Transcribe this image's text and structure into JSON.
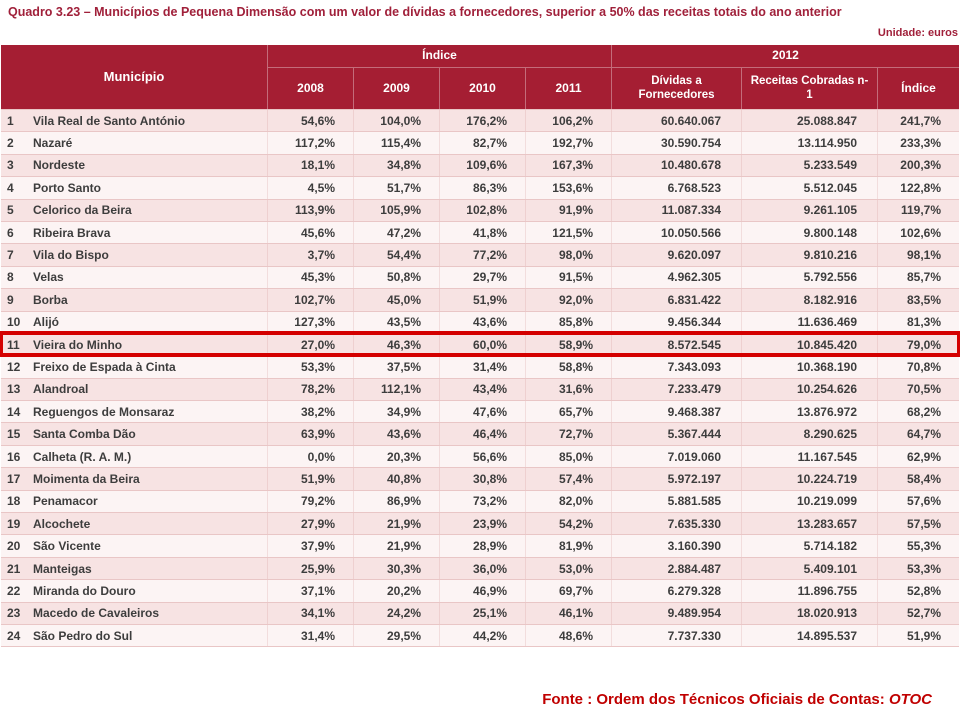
{
  "title": "Quadro 3.23 – Municípios de Pequena Dimensão com um valor de dívidas a fornecedores, superior a 50% das receitas totais do ano anterior",
  "unit_label": "Unidade: euros",
  "table": {
    "header": {
      "municipio": "Município",
      "indice_group": "Índice",
      "group_2012": "2012",
      "years": [
        "2008",
        "2009",
        "2010",
        "2011"
      ],
      "dividas": "Dívidas a Fornecedores",
      "receitas": "Receitas Cobradas n-1",
      "indice": "Índice"
    },
    "highlighted_row": 11,
    "rows": [
      [
        "1",
        "Vila Real de Santo António",
        "54,6%",
        "104,0%",
        "176,2%",
        "106,2%",
        "60.640.067",
        "25.088.847",
        "241,7%"
      ],
      [
        "2",
        "Nazaré",
        "117,2%",
        "115,4%",
        "82,7%",
        "192,7%",
        "30.590.754",
        "13.114.950",
        "233,3%"
      ],
      [
        "3",
        "Nordeste",
        "18,1%",
        "34,8%",
        "109,6%",
        "167,3%",
        "10.480.678",
        "5.233.549",
        "200,3%"
      ],
      [
        "4",
        "Porto Santo",
        "4,5%",
        "51,7%",
        "86,3%",
        "153,6%",
        "6.768.523",
        "5.512.045",
        "122,8%"
      ],
      [
        "5",
        "Celorico da Beira",
        "113,9%",
        "105,9%",
        "102,8%",
        "91,9%",
        "11.087.334",
        "9.261.105",
        "119,7%"
      ],
      [
        "6",
        "Ribeira Brava",
        "45,6%",
        "47,2%",
        "41,8%",
        "121,5%",
        "10.050.566",
        "9.800.148",
        "102,6%"
      ],
      [
        "7",
        "Vila do Bispo",
        "3,7%",
        "54,4%",
        "77,2%",
        "98,0%",
        "9.620.097",
        "9.810.216",
        "98,1%"
      ],
      [
        "8",
        "Velas",
        "45,3%",
        "50,8%",
        "29,7%",
        "91,5%",
        "4.962.305",
        "5.792.556",
        "85,7%"
      ],
      [
        "9",
        "Borba",
        "102,7%",
        "45,0%",
        "51,9%",
        "92,0%",
        "6.831.422",
        "8.182.916",
        "83,5%"
      ],
      [
        "10",
        "Alijó",
        "127,3%",
        "43,5%",
        "43,6%",
        "85,8%",
        "9.456.344",
        "11.636.469",
        "81,3%"
      ],
      [
        "11",
        "Vieira do Minho",
        "27,0%",
        "46,3%",
        "60,0%",
        "58,9%",
        "8.572.545",
        "10.845.420",
        "79,0%"
      ],
      [
        "12",
        "Freixo de Espada à Cinta",
        "53,3%",
        "37,5%",
        "31,4%",
        "58,8%",
        "7.343.093",
        "10.368.190",
        "70,8%"
      ],
      [
        "13",
        "Alandroal",
        "78,2%",
        "112,1%",
        "43,4%",
        "31,6%",
        "7.233.479",
        "10.254.626",
        "70,5%"
      ],
      [
        "14",
        "Reguengos de Monsaraz",
        "38,2%",
        "34,9%",
        "47,6%",
        "65,7%",
        "9.468.387",
        "13.876.972",
        "68,2%"
      ],
      [
        "15",
        "Santa Comba Dão",
        "63,9%",
        "43,6%",
        "46,4%",
        "72,7%",
        "5.367.444",
        "8.290.625",
        "64,7%"
      ],
      [
        "16",
        "Calheta (R. A. M.)",
        "0,0%",
        "20,3%",
        "56,6%",
        "85,0%",
        "7.019.060",
        "11.167.545",
        "62,9%"
      ],
      [
        "17",
        "Moimenta da Beira",
        "51,9%",
        "40,8%",
        "30,8%",
        "57,4%",
        "5.972.197",
        "10.224.719",
        "58,4%"
      ],
      [
        "18",
        "Penamacor",
        "79,2%",
        "86,9%",
        "73,2%",
        "82,0%",
        "5.881.585",
        "10.219.099",
        "57,6%"
      ],
      [
        "19",
        "Alcochete",
        "27,9%",
        "21,9%",
        "23,9%",
        "54,2%",
        "7.635.330",
        "13.283.657",
        "57,5%"
      ],
      [
        "20",
        "São Vicente",
        "37,9%",
        "21,9%",
        "28,9%",
        "81,9%",
        "3.160.390",
        "5.714.182",
        "55,3%"
      ],
      [
        "21",
        "Manteigas",
        "25,9%",
        "30,3%",
        "36,0%",
        "53,0%",
        "2.884.487",
        "5.409.101",
        "53,3%"
      ],
      [
        "22",
        "Miranda do Douro",
        "37,1%",
        "20,2%",
        "46,9%",
        "69,7%",
        "6.279.328",
        "11.896.755",
        "52,8%"
      ],
      [
        "23",
        "Macedo de Cavaleiros",
        "34,1%",
        "24,2%",
        "25,1%",
        "46,1%",
        "9.489.954",
        "18.020.913",
        "52,7%"
      ],
      [
        "24",
        "São Pedro do Sul",
        "31,4%",
        "29,5%",
        "44,2%",
        "48,6%",
        "7.737.330",
        "14.895.537",
        "51,9%"
      ]
    ]
  },
  "footer": {
    "label": "Fonte : ",
    "source": "Ordem dos Técnicos Oficiais de Contas: ",
    "otoc": "OTOC"
  },
  "colors": {
    "header_bg": "#A51E33",
    "header_text": "#FFFFFF",
    "row_pink": "#F7E3E3",
    "row_light": "#FCF4F4",
    "row_line": "#E9C6C6",
    "body_text": "#3D3D3D",
    "title_red": "#A0203A",
    "highlight_red": "#D40000",
    "footer_red": "#C00000"
  }
}
